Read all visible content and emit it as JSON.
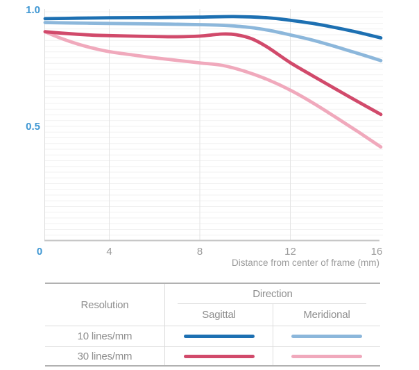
{
  "chart_data": {
    "type": "line",
    "title": "",
    "xlabel": "Distance from center of frame (mm)",
    "ylabel": "",
    "xlim": [
      0,
      16
    ],
    "ylim": [
      0,
      1.0
    ],
    "grid": true,
    "minor_y_grid_step": 0.025,
    "x_ticks": [
      {
        "value": 0,
        "label": "0",
        "accent": true,
        "grid": false
      },
      {
        "value": 4,
        "label": "4",
        "accent": false,
        "grid": true
      },
      {
        "value": 8,
        "label": "8",
        "accent": false,
        "grid": true
      },
      {
        "value": 12,
        "label": "12",
        "accent": false,
        "grid": true
      },
      {
        "value": 16,
        "label": "16",
        "accent": false,
        "grid": false
      }
    ],
    "y_ticks": [
      {
        "value": 1.0,
        "label": "1.0"
      },
      {
        "value": 0.5,
        "label": "0.5"
      }
    ],
    "series": [
      {
        "id": "10-sagittal",
        "name": "10 lines/mm Sagittal",
        "color": "#1d70b2",
        "points": [
          [
            0,
            0.97
          ],
          [
            2,
            0.972
          ],
          [
            4,
            0.974
          ],
          [
            6,
            0.975
          ],
          [
            8,
            0.977
          ],
          [
            9.5,
            0.979
          ],
          [
            11,
            0.974
          ],
          [
            12,
            0.963
          ],
          [
            13,
            0.949
          ],
          [
            14,
            0.931
          ],
          [
            15,
            0.91
          ],
          [
            16,
            0.886
          ]
        ]
      },
      {
        "id": "10-meridional",
        "name": "10 lines/mm Meridional",
        "color": "#8cb7db",
        "points": [
          [
            0,
            0.953
          ],
          [
            2,
            0.951
          ],
          [
            4,
            0.949
          ],
          [
            6,
            0.947
          ],
          [
            8,
            0.944
          ],
          [
            9,
            0.941
          ],
          [
            10,
            0.934
          ],
          [
            11,
            0.92
          ],
          [
            12,
            0.899
          ],
          [
            13,
            0.876
          ],
          [
            14,
            0.848
          ],
          [
            15,
            0.818
          ],
          [
            16,
            0.787
          ]
        ]
      },
      {
        "id": "30-sagittal",
        "name": "30 lines/mm Sagittal",
        "color": "#d14a6b",
        "points": [
          [
            0,
            0.913
          ],
          [
            1,
            0.907
          ],
          [
            2,
            0.902
          ],
          [
            3,
            0.898
          ],
          [
            4,
            0.896
          ],
          [
            5,
            0.894
          ],
          [
            6,
            0.892
          ],
          [
            7,
            0.891
          ],
          [
            8,
            0.894
          ],
          [
            9,
            0.903
          ],
          [
            9.6,
            0.9
          ],
          [
            10.3,
            0.882
          ],
          [
            11,
            0.845
          ],
          [
            12,
            0.778
          ],
          [
            13,
            0.72
          ],
          [
            14,
            0.663
          ],
          [
            15,
            0.607
          ],
          [
            16,
            0.552
          ]
        ]
      },
      {
        "id": "30-meridional",
        "name": "30 lines/mm Meridional",
        "color": "#f0a9bc",
        "points": [
          [
            0,
            0.913
          ],
          [
            1,
            0.884
          ],
          [
            2,
            0.86
          ],
          [
            3,
            0.841
          ],
          [
            4,
            0.826
          ],
          [
            5,
            0.812
          ],
          [
            6,
            0.799
          ],
          [
            7,
            0.788
          ],
          [
            8,
            0.777
          ],
          [
            9,
            0.766
          ],
          [
            10,
            0.74
          ],
          [
            11,
            0.704
          ],
          [
            12,
            0.658
          ],
          [
            13,
            0.602
          ],
          [
            14,
            0.54
          ],
          [
            15,
            0.476
          ],
          [
            16,
            0.41
          ]
        ]
      }
    ],
    "legend_position": "bottom-table"
  },
  "legend_table": {
    "resolution_header": "Resolution",
    "direction_header": "Direction",
    "sagittal_header": "Sagittal",
    "meridional_header": "Meridional",
    "rows": [
      {
        "label": "10 lines/mm",
        "sagittal_series": "10-sagittal",
        "meridional_series": "10-meridional"
      },
      {
        "label": "30 lines/mm",
        "sagittal_series": "30-sagittal",
        "meridional_series": "30-meridional"
      }
    ]
  },
  "colors": {
    "accent_axis_label": "#3f97d3",
    "muted_label": "#9b9b9b",
    "table_text": "#8e8e8e"
  }
}
